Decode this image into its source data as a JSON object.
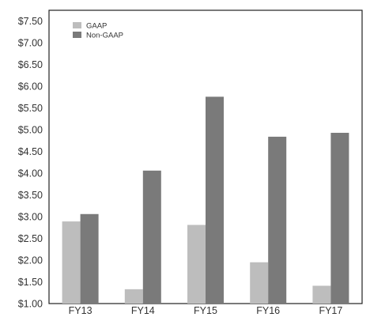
{
  "chart_data": {
    "type": "bar",
    "categories": [
      "FY13",
      "FY14",
      "FY15",
      "FY16",
      "FY17"
    ],
    "series": [
      {
        "name": "GAAP",
        "values": [
          2.89,
          1.33,
          2.81,
          1.95,
          1.41
        ],
        "color": "#bdbdbd"
      },
      {
        "name": "Non-GAAP",
        "values": [
          3.06,
          4.06,
          5.76,
          4.84,
          4.93
        ],
        "color": "#7a7a7a"
      }
    ],
    "yticks": [
      "$1.00",
      "$1.50",
      "$2.00",
      "$2.50",
      "$3.00",
      "$3.50",
      "$4.00",
      "$4.50",
      "$5.00",
      "$5.50",
      "$6.00",
      "$6.50",
      "$7.00",
      "$7.50"
    ],
    "ylim": [
      1.0,
      7.75
    ],
    "grid": false,
    "legend": "top-left"
  }
}
